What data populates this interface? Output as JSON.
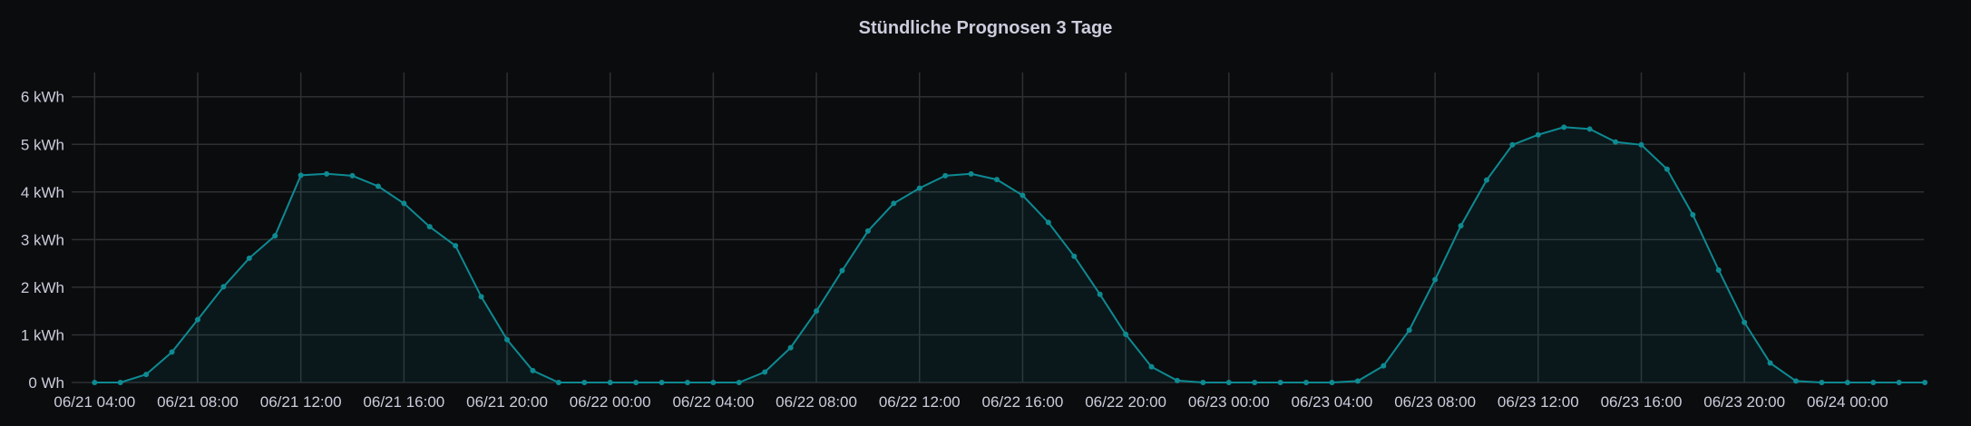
{
  "chart_data": {
    "type": "area",
    "title": "Stündliche Prognosen 3 Tage",
    "xlabel": "",
    "ylabel": "",
    "x_start": "06/21 04:00",
    "x_step": "1 hour",
    "x_range": [
      "06/21 03:00",
      "06/24 03:00"
    ],
    "ylim": [
      0,
      6.5
    ],
    "y_unit": "kWh",
    "grid": true,
    "legend": "none",
    "y_ticks": [
      {
        "value": 0,
        "label": "0 Wh"
      },
      {
        "value": 1,
        "label": "1 kWh"
      },
      {
        "value": 2,
        "label": "2 kWh"
      },
      {
        "value": 3,
        "label": "3 kWh"
      },
      {
        "value": 4,
        "label": "4 kWh"
      },
      {
        "value": 5,
        "label": "5 kWh"
      },
      {
        "value": 6,
        "label": "6 kWh"
      }
    ],
    "x_ticks": [
      "06/21 04:00",
      "06/21 08:00",
      "06/21 12:00",
      "06/21 16:00",
      "06/21 20:00",
      "06/22 00:00",
      "06/22 04:00",
      "06/22 08:00",
      "06/22 12:00",
      "06/22 16:00",
      "06/22 20:00",
      "06/23 00:00",
      "06/23 04:00",
      "06/23 08:00",
      "06/23 12:00",
      "06/23 16:00",
      "06/23 20:00",
      "06/24 00:00"
    ],
    "series": [
      {
        "color": "#0e8a92",
        "values": [
          0,
          0,
          0.17,
          0.64,
          1.32,
          2.01,
          2.61,
          3.08,
          4.35,
          4.38,
          4.34,
          4.12,
          3.76,
          3.27,
          2.87,
          1.8,
          0.9,
          0.25,
          0,
          0,
          0,
          0,
          0,
          0,
          0,
          0,
          0.22,
          0.73,
          1.5,
          2.35,
          3.18,
          3.76,
          4.08,
          4.34,
          4.38,
          4.26,
          3.93,
          3.36,
          2.65,
          1.85,
          1.01,
          0.33,
          0.04,
          0,
          0,
          0,
          0,
          0,
          0,
          0.03,
          0.35,
          1.1,
          2.16,
          3.29,
          4.25,
          4.99,
          5.2,
          5.36,
          5.32,
          5.05,
          4.99,
          4.48,
          3.52,
          2.36,
          1.26,
          0.41,
          0.03,
          0,
          0,
          0,
          0,
          0
        ]
      }
    ]
  },
  "colors": {
    "background": "#0b0c0e",
    "grid": "#2e3033",
    "text": "#ccccdc",
    "line": "#0e8a92"
  }
}
